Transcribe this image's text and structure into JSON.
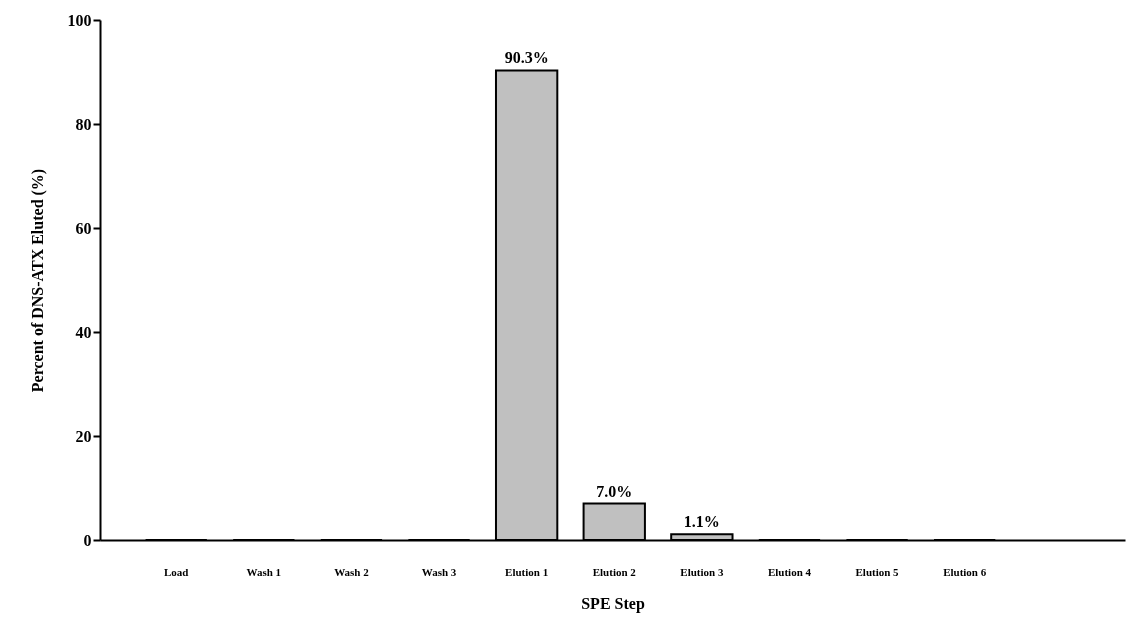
{
  "chart_data": {
    "type": "bar",
    "xlabel": "SPE Step",
    "ylabel": "Percent of DNS-ATX Eluted (%)",
    "categories": [
      "Load",
      "Wash 1",
      "Wash 2",
      "Wash 3",
      "Elution 1",
      "Elution 2",
      "Elution 3",
      "Elution 4",
      "Elution 5",
      "Elution 6"
    ],
    "values": [
      0,
      0,
      0,
      0,
      90.3,
      7.0,
      1.1,
      0,
      0,
      0
    ],
    "value_labels": [
      null,
      null,
      null,
      null,
      "90.3%",
      "7.0%",
      "1.1%",
      null,
      null,
      null
    ],
    "color": "#c0c0c0",
    "ylim": [
      0,
      100
    ],
    "yticks": [
      0,
      20,
      40,
      60,
      80,
      100
    ],
    "grid": false
  }
}
